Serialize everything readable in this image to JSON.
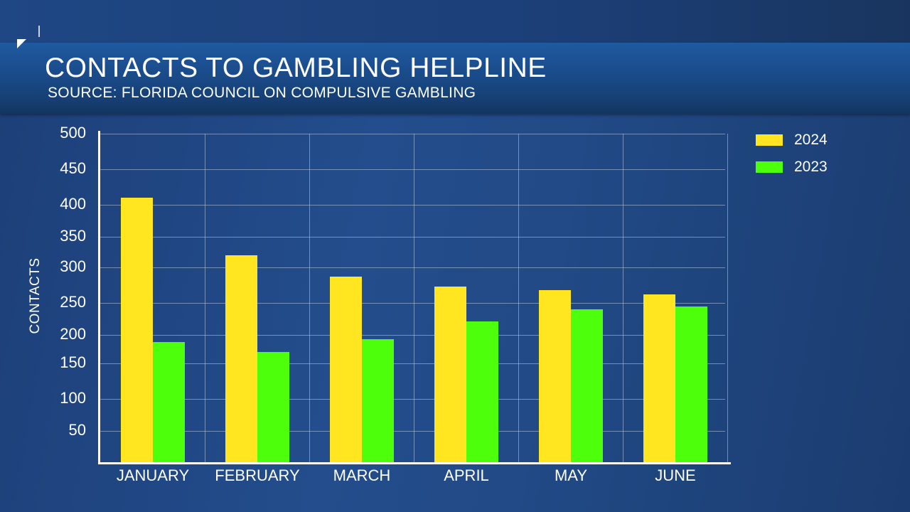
{
  "header": {
    "title": "CONTACTS TO GAMBLING HELPLINE",
    "subtitle": "SOURCE: FLORIDA COUNCIL ON COMPULSIVE GAMBLING"
  },
  "colors": {
    "series_2024": "#ffe620",
    "series_2023": "#4dff0a",
    "background": "#214a86",
    "grid": "#b8c4dc"
  },
  "chart_data": {
    "type": "bar",
    "title": "CONTACTS TO GAMBLING HELPLINE",
    "subtitle": "SOURCE: FLORIDA COUNCIL ON COMPULSIVE GAMBLING",
    "xlabel": "",
    "ylabel": "CONTACTS",
    "categories": [
      "JANUARY",
      "FEBRUARY",
      "MARCH",
      "APRIL",
      "MAY",
      "JUNE"
    ],
    "series": [
      {
        "name": "2024",
        "color": "#ffe620",
        "values": [
          410,
          320,
          287,
          273,
          268,
          262
        ]
      },
      {
        "name": "2023",
        "color": "#4dff0a",
        "values": [
          188,
          170,
          192,
          221,
          240,
          244
        ]
      }
    ],
    "yticks": [
      50,
      100,
      150,
      200,
      250,
      300,
      350,
      400,
      450,
      500
    ],
    "ylim": [
      0,
      500
    ],
    "grid": true,
    "legend_position": "top-right"
  },
  "legend": {
    "items": [
      {
        "label": "2024"
      },
      {
        "label": "2023"
      }
    ]
  }
}
